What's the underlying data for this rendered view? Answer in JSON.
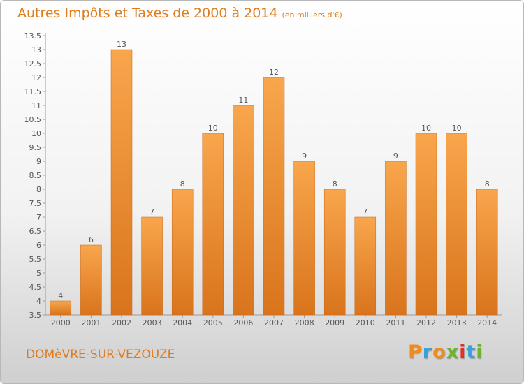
{
  "header": {
    "title": "Autres Impôts et Taxes de 2000 à 2014",
    "subtitle": "(en milliers d'€)"
  },
  "footer": {
    "town": "DOMèVRE-SUR-VEZOUZE",
    "logo_text": "Proxiti"
  },
  "colors": {
    "accent": "#e07b1c",
    "bar_light": "#f8a64c",
    "bar_dark": "#d9741c",
    "logo": [
      "#f08c1c",
      "#3aa0d8",
      "#f08c1c",
      "#6cb42c",
      "#e0302c",
      "#3aa0d8",
      "#6cb42c"
    ]
  },
  "chart_data": {
    "type": "bar",
    "title": "Autres Impôts et Taxes de 2000 à 2014",
    "categories": [
      "2000",
      "2001",
      "2002",
      "2003",
      "2004",
      "2005",
      "2006",
      "2007",
      "2008",
      "2009",
      "2010",
      "2011",
      "2012",
      "2013",
      "2014"
    ],
    "values": [
      4,
      6,
      13,
      7,
      8,
      10,
      11,
      12,
      9,
      8,
      7,
      9,
      10,
      10,
      8
    ],
    "yticks": [
      "3.5",
      "4",
      "4.5",
      "5",
      "5.5",
      "6",
      "6.5",
      "7",
      "7.5",
      "8",
      "8.5",
      "9",
      "9.5",
      "10",
      "10.5",
      "11",
      "11.5",
      "12",
      "12.5",
      "13",
      "13.5"
    ],
    "ylim": [
      3.5,
      13.5
    ],
    "grid": false,
    "legend": "none"
  }
}
